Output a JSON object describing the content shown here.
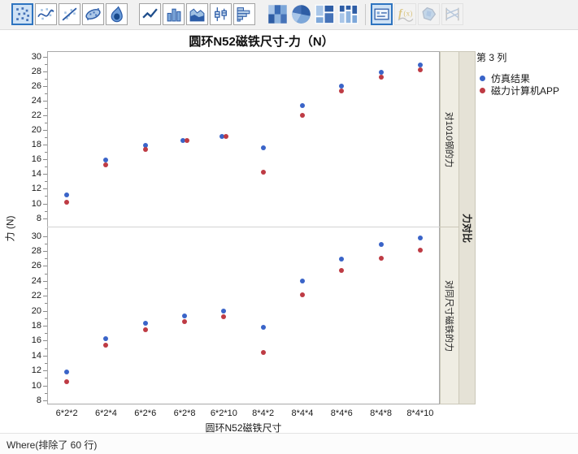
{
  "window": {
    "status_text": "Where(排除了 60 行)"
  },
  "toolbar": {
    "icons": [
      {
        "name": "scatter",
        "group": 1,
        "selected": true
      },
      {
        "name": "smoother",
        "group": 1
      },
      {
        "name": "line-of-fit",
        "group": 1
      },
      {
        "name": "density-ellipse",
        "group": 1
      },
      {
        "name": "contour-density",
        "group": 1
      },
      {
        "name": "line-chart",
        "group": 2
      },
      {
        "name": "bar-chart",
        "group": 2
      },
      {
        "name": "area-chart",
        "group": 2
      },
      {
        "name": "box-plot",
        "group": 2
      },
      {
        "name": "histogram",
        "group": 2
      },
      {
        "name": "heatmap",
        "group": 3,
        "noframe": true
      },
      {
        "name": "pie-chart",
        "group": 3,
        "noframe": true
      },
      {
        "name": "treemap",
        "group": 3,
        "noframe": true
      },
      {
        "name": "mosaic-plot",
        "group": 3,
        "noframe": true
      },
      {
        "name": "caption-box",
        "group": 4,
        "selected": true
      },
      {
        "name": "formula",
        "group": 4,
        "disabled": true
      },
      {
        "name": "map-shapes",
        "group": 4,
        "disabled": true
      },
      {
        "name": "parallel-plot",
        "group": 4,
        "disabled": true
      }
    ]
  },
  "legend": {
    "title": "第 3 列",
    "items": [
      {
        "label": "仿真结果",
        "color": "#3A64C8"
      },
      {
        "label": "磁力计算机APP",
        "color": "#BE3B44"
      }
    ]
  },
  "chart_data": {
    "type": "scatter",
    "title": "圆环N52磁铁尺寸-力（N）",
    "xlabel": "圆环N52磁铁尺寸",
    "ylabel": "力 (N)",
    "group_label": "力对比",
    "legend_position": "right",
    "grid": false,
    "categories": [
      "6*2*2",
      "6*2*4",
      "6*2*6",
      "6*2*8",
      "6*2*10",
      "8*4*2",
      "8*4*4",
      "8*4*6",
      "8*4*8",
      "8*4*10"
    ],
    "yticks": [
      8,
      10,
      12,
      14,
      16,
      18,
      20,
      22,
      24,
      26,
      28,
      30
    ],
    "ylim": [
      7,
      31
    ],
    "panels": [
      {
        "label": "对1010钢的力",
        "series": [
          {
            "name": "仿真结果",
            "color": "#3A64C8",
            "values": [
              11.2,
              16.0,
              18.0,
              18.6,
              19.2,
              17.6,
              23.4,
              26.0,
              27.9,
              28.9
            ],
            "dx": [
              0,
              0,
              0,
              -2.5,
              -2.5,
              0,
              0,
              0,
              0,
              0
            ]
          },
          {
            "name": "磁力计算机APP",
            "color": "#BE3B44",
            "values": [
              10.2,
              15.3,
              17.4,
              18.6,
              19.2,
              14.3,
              22.0,
              25.4,
              27.2,
              28.2
            ],
            "dx": [
              0,
              0,
              0,
              2.5,
              2.5,
              0,
              0,
              0,
              0,
              0
            ]
          }
        ]
      },
      {
        "label": "对同尺寸磁铁的力",
        "series": [
          {
            "name": "仿真结果",
            "color": "#3A64C8",
            "values": [
              11.9,
              16.3,
              18.4,
              19.4,
              20.0,
              17.8,
              24.0,
              27.0,
              28.9,
              29.8
            ]
          },
          {
            "name": "磁力计算机APP",
            "color": "#BE3B44",
            "values": [
              10.5,
              15.4,
              17.5,
              18.6,
              19.2,
              14.5,
              22.2,
              25.4,
              27.1,
              28.1
            ]
          }
        ]
      }
    ]
  }
}
